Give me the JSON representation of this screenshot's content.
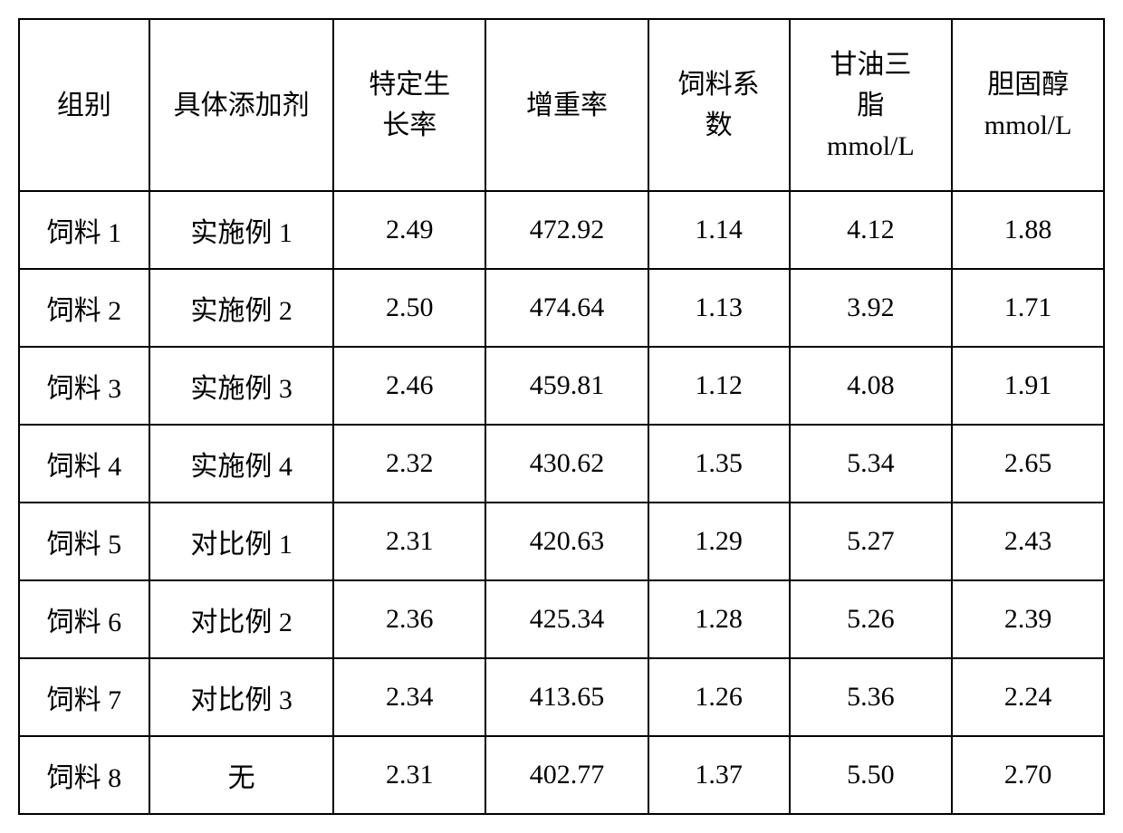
{
  "table": {
    "type": "table",
    "columns": [
      {
        "label": "组别",
        "width": "12%",
        "align": "center"
      },
      {
        "label": "具体添加剂",
        "width": "17%",
        "align": "center"
      },
      {
        "label": "特定生\n长率",
        "width": "14%",
        "align": "center"
      },
      {
        "label": "增重率",
        "width": "15%",
        "align": "center"
      },
      {
        "label": "饲料系\n数",
        "width": "13%",
        "align": "center"
      },
      {
        "label": "甘油三\n脂\nmmol/L",
        "width": "15%",
        "align": "center"
      },
      {
        "label": "胆固醇\nmmol/L",
        "width": "14%",
        "align": "center"
      }
    ],
    "rows": [
      [
        "饲料 1",
        "实施例 1",
        "2.49",
        "472.92",
        "1.14",
        "4.12",
        "1.88"
      ],
      [
        "饲料 2",
        "实施例 2",
        "2.50",
        "474.64",
        "1.13",
        "3.92",
        "1.71"
      ],
      [
        "饲料 3",
        "实施例 3",
        "2.46",
        "459.81",
        "1.12",
        "4.08",
        "1.91"
      ],
      [
        "饲料 4",
        "实施例 4",
        "2.32",
        "430.62",
        "1.35",
        "5.34",
        "2.65"
      ],
      [
        "饲料 5",
        "对比例 1",
        "2.31",
        "420.63",
        "1.29",
        "5.27",
        "2.43"
      ],
      [
        "饲料 6",
        "对比例 2",
        "2.36",
        "425.34",
        "1.28",
        "5.26",
        "2.39"
      ],
      [
        "饲料 7",
        "对比例 3",
        "2.34",
        "413.65",
        "1.26",
        "5.36",
        "2.24"
      ],
      [
        "饲料 8",
        "无",
        "2.31",
        "402.77",
        "1.37",
        "5.50",
        "2.70"
      ]
    ],
    "border_color": "#000000",
    "background_color": "#ffffff",
    "text_color": "#000000",
    "header_fontsize": 30,
    "cell_fontsize": 30,
    "font_family": "SimSun"
  }
}
